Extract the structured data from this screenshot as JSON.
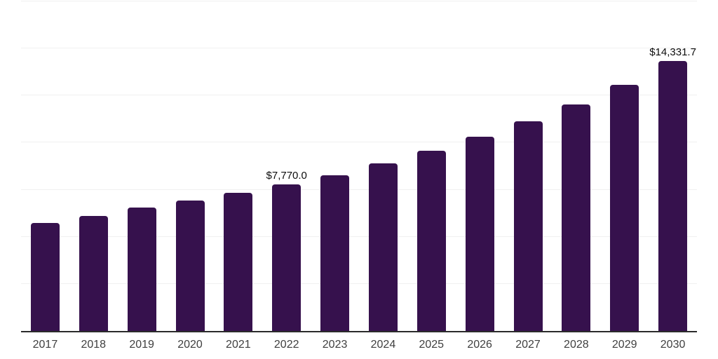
{
  "chart_data": {
    "type": "bar",
    "title": "",
    "xlabel": "",
    "ylabel": "",
    "categories": [
      "2017",
      "2018",
      "2019",
      "2020",
      "2021",
      "2022",
      "2023",
      "2024",
      "2025",
      "2026",
      "2027",
      "2028",
      "2029",
      "2030"
    ],
    "values": [
      5750,
      6100,
      6540,
      6910,
      7340,
      7770.0,
      8280,
      8900,
      9580,
      10320,
      11120,
      12020,
      13080,
      14331.7
    ],
    "value_labels": {
      "2022": "$7,770.0",
      "2030": "$14,331.7"
    },
    "ylim": [
      0,
      17500
    ],
    "gridline_step": 2500,
    "grid": true,
    "legend": false,
    "y_axis_tick_labels_visible": false
  },
  "style": {
    "bar_color": "#36114D",
    "grid_color": "#f0f0f0",
    "axis_color": "#2b2b2b",
    "tick_label_color": "#3f3f3f",
    "value_label_color": "#0d0d0d",
    "background_color": "#ffffff"
  }
}
